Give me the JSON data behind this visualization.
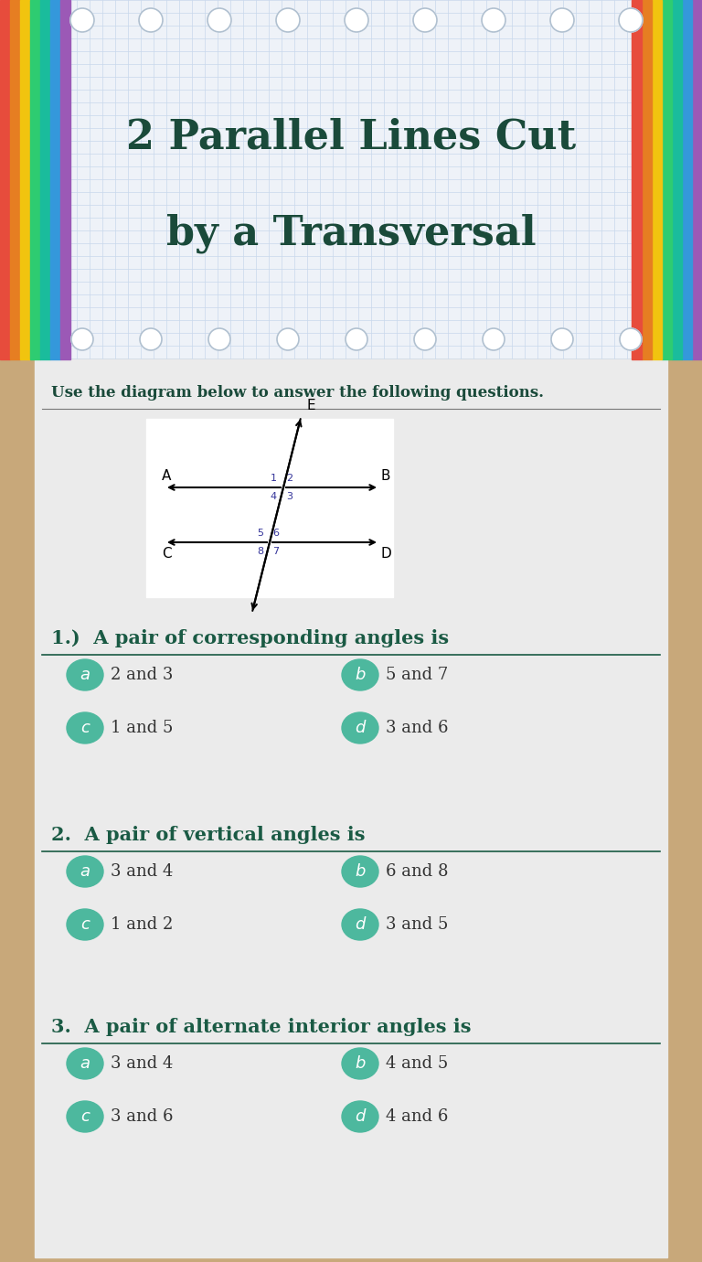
{
  "title_line1": "2 Parallel Lines Cut",
  "title_line2": "by a Transversal",
  "title_color": "#1a4a3a",
  "title_fontsize": 32,
  "header_bg": "#eef2f8",
  "header_grid_color": "#c8d8ec",
  "body_bg": "#c8a87a",
  "content_bg": "#ebebeb",
  "instruction": "Use the diagram below to answer the following questions.",
  "instruction_color": "#1a4a3a",
  "questions": [
    {
      "number": "1.)",
      "text": "A pair of corresponding angles is",
      "options": [
        {
          "label": "a",
          "answer": "2 and 3"
        },
        {
          "label": "b",
          "answer": "5 and 7"
        },
        {
          "label": "c",
          "answer": "1 and 5"
        },
        {
          "label": "d",
          "answer": "3 and 6"
        }
      ]
    },
    {
      "number": "2.",
      "text": "A pair of vertical angles is",
      "options": [
        {
          "label": "a",
          "answer": "3 and 4"
        },
        {
          "label": "b",
          "answer": "6 and 8"
        },
        {
          "label": "c",
          "answer": "1 and 2"
        },
        {
          "label": "d",
          "answer": "3 and 5"
        }
      ]
    },
    {
      "number": "3.",
      "text": "A pair of alternate interior angles is",
      "options": [
        {
          "label": "a",
          "answer": "3 and 4"
        },
        {
          "label": "b",
          "answer": "4 and 5"
        },
        {
          "label": "c",
          "answer": "3 and 6"
        },
        {
          "label": "d",
          "answer": "4 and 6"
        }
      ]
    }
  ],
  "teal_color": "#4db89e",
  "question_color": "#1a5a44",
  "answer_text_color": "#333333",
  "line_color": "#1a5a44",
  "strip_colors_left": [
    "#e74c3c",
    "#e67e22",
    "#f1c40f",
    "#2ecc71",
    "#1abc9c",
    "#3498db",
    "#9b59b6"
  ],
  "strip_colors_right": [
    "#9b59b6",
    "#3498db",
    "#1abc9c",
    "#2ecc71",
    "#f1c40f",
    "#e67e22",
    "#e74c3c"
  ]
}
